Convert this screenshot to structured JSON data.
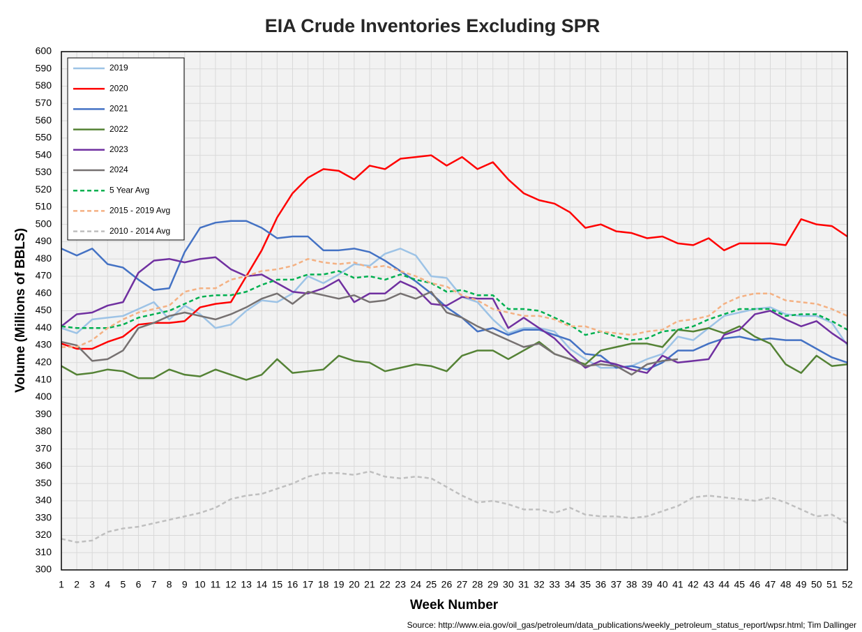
{
  "chart_data": {
    "type": "line",
    "title": "EIA Crude Inventories Excluding SPR",
    "xlabel": "Week Number",
    "ylabel": "Volume (Millions of BBLS)",
    "source": "Source: http://www.eia.gov/oil_gas/petroleum/data_publications/weekly_petroleum_status_report/wpsr.html; Tim Dallinger",
    "x": [
      1,
      2,
      3,
      4,
      5,
      6,
      7,
      8,
      9,
      10,
      11,
      12,
      13,
      14,
      15,
      16,
      17,
      18,
      19,
      20,
      21,
      22,
      23,
      24,
      25,
      26,
      27,
      28,
      29,
      30,
      31,
      32,
      33,
      34,
      35,
      36,
      37,
      38,
      39,
      40,
      41,
      42,
      43,
      44,
      45,
      46,
      47,
      48,
      49,
      50,
      51,
      52
    ],
    "xlim": [
      1,
      52
    ],
    "ylim": [
      300,
      600
    ],
    "yticks": [
      300,
      310,
      320,
      330,
      340,
      350,
      360,
      370,
      380,
      390,
      400,
      410,
      420,
      430,
      440,
      450,
      460,
      470,
      480,
      490,
      500,
      510,
      520,
      530,
      540,
      550,
      560,
      570,
      580,
      590,
      600
    ],
    "grid": true,
    "legend": "upper left",
    "series": [
      {
        "name": "2019",
        "color": "#9dc3e6",
        "dashed": false,
        "values": [
          440,
          437,
          445,
          446,
          447,
          451,
          455,
          445,
          453,
          448,
          440,
          442,
          450,
          456,
          455,
          460,
          470,
          466,
          471,
          477,
          476,
          483,
          486,
          482,
          470,
          469,
          458,
          455,
          445,
          437,
          440,
          440,
          438,
          428,
          422,
          417,
          417,
          418,
          422,
          425,
          435,
          433,
          440,
          447,
          449,
          451,
          452,
          448,
          447,
          447,
          443,
          430
        ]
      },
      {
        "name": "2020",
        "color": "#ff0000",
        "dashed": false,
        "values": [
          431,
          428,
          428,
          432,
          435,
          442,
          443,
          443,
          444,
          452,
          454,
          455,
          470,
          485,
          504,
          518,
          527,
          532,
          531,
          526,
          534,
          532,
          538,
          539,
          540,
          534,
          539,
          532,
          536,
          526,
          518,
          514,
          512,
          507,
          498,
          500,
          496,
          495,
          492,
          493,
          489,
          488,
          492,
          485,
          489,
          489,
          489,
          488,
          503,
          500,
          499,
          493
        ]
      },
      {
        "name": "2021",
        "color": "#4472c4",
        "dashed": false,
        "values": [
          486,
          482,
          486,
          477,
          475,
          468,
          462,
          463,
          484,
          498,
          501,
          502,
          502,
          498,
          492,
          493,
          493,
          485,
          485,
          486,
          484,
          479,
          473,
          467,
          460,
          452,
          446,
          438,
          440,
          436,
          439,
          439,
          436,
          433,
          425,
          424,
          417,
          418,
          416,
          420,
          427,
          427,
          431,
          434,
          435,
          433,
          434,
          433,
          433,
          428,
          423,
          420
        ]
      },
      {
        "name": "2022",
        "color": "#548235",
        "dashed": false,
        "values": [
          418,
          413,
          414,
          416,
          415,
          411,
          411,
          416,
          413,
          412,
          416,
          413,
          410,
          413,
          422,
          414,
          415,
          416,
          424,
          421,
          420,
          415,
          417,
          419,
          418,
          415,
          424,
          427,
          427,
          422,
          427,
          432,
          425,
          422,
          419,
          427,
          429,
          431,
          431,
          429,
          439,
          438,
          440,
          437,
          441,
          435,
          431,
          419,
          414,
          424,
          418,
          419
        ]
      },
      {
        "name": "2023",
        "color": "#7030a0",
        "dashed": false,
        "values": [
          441,
          448,
          449,
          453,
          455,
          472,
          479,
          480,
          478,
          480,
          481,
          474,
          470,
          471,
          466,
          461,
          460,
          463,
          468,
          455,
          460,
          460,
          467,
          463,
          454,
          453,
          458,
          457,
          457,
          440,
          446,
          440,
          434,
          425,
          417,
          421,
          419,
          416,
          414,
          424,
          420,
          421,
          422,
          436,
          439,
          448,
          450,
          445,
          441,
          444,
          437,
          431
        ]
      },
      {
        "name": "2024",
        "color": "#767171",
        "dashed": false,
        "values": [
          432,
          430,
          421,
          422,
          427,
          440,
          443,
          447,
          449,
          447,
          445,
          448,
          452,
          457,
          460,
          454,
          461,
          459,
          457,
          459,
          455,
          456,
          460,
          457,
          461,
          449,
          446,
          441,
          437,
          433,
          429,
          431,
          425,
          422,
          418,
          419,
          418,
          413,
          419,
          421,
          422,
          null,
          null,
          null,
          null,
          null,
          null,
          null,
          null,
          null,
          null,
          null
        ]
      },
      {
        "name": "5 Year Avg",
        "color": "#00b050",
        "dashed": true,
        "values": [
          441,
          440,
          440,
          440,
          442,
          446,
          448,
          450,
          454,
          458,
          459,
          459,
          461,
          465,
          468,
          468,
          471,
          471,
          473,
          469,
          470,
          468,
          471,
          468,
          466,
          461,
          462,
          459,
          459,
          451,
          451,
          450,
          446,
          442,
          436,
          438,
          435,
          433,
          434,
          438,
          439,
          441,
          445,
          448,
          451,
          451,
          451,
          447,
          448,
          448,
          444,
          439
        ]
      },
      {
        "name": "2015 - 2019 Avg",
        "color": "#f4b183",
        "dashed": true,
        "values": [
          429,
          429,
          433,
          440,
          445,
          449,
          451,
          453,
          461,
          463,
          463,
          468,
          470,
          473,
          474,
          476,
          480,
          478,
          477,
          478,
          475,
          476,
          473,
          470,
          466,
          464,
          459,
          456,
          451,
          449,
          447,
          447,
          445,
          441,
          441,
          438,
          437,
          436,
          438,
          439,
          444,
          445,
          447,
          454,
          458,
          460,
          460,
          456,
          455,
          454,
          451,
          447
        ]
      },
      {
        "name": "2010 - 2014 Avg",
        "color": "#bfbfbf",
        "dashed": true,
        "values": [
          318,
          316,
          317,
          322,
          324,
          325,
          327,
          329,
          331,
          333,
          336,
          341,
          343,
          344,
          347,
          350,
          354,
          356,
          356,
          355,
          357,
          354,
          353,
          354,
          353,
          348,
          343,
          339,
          340,
          338,
          335,
          335,
          333,
          336,
          332,
          331,
          331,
          330,
          331,
          334,
          337,
          342,
          343,
          342,
          341,
          340,
          342,
          339,
          335,
          331,
          332,
          327
        ]
      }
    ]
  }
}
